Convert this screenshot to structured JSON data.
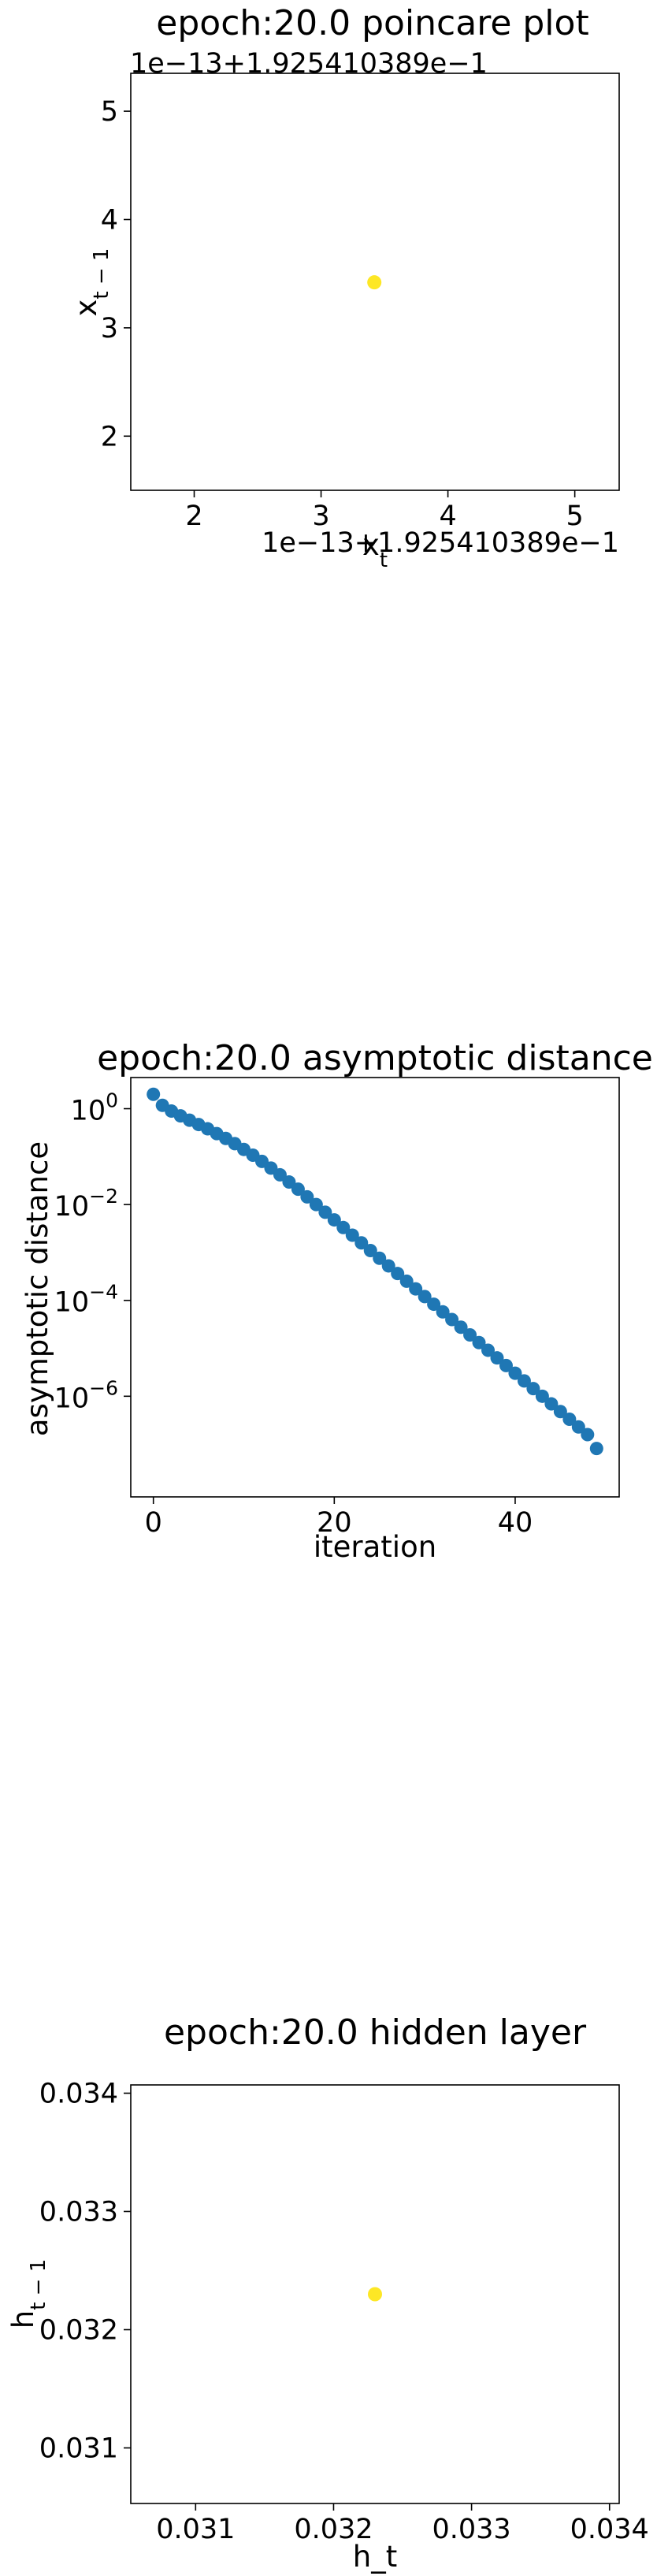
{
  "chart_data": [
    {
      "type": "scatter",
      "title": "epoch:20.0 poincare plot",
      "xlabel": "x_t",
      "ylabel": "x_{t-1}",
      "x_offset_text": "1e−13+1.925410389e−1",
      "y_offset_text": "1e−13+1.925410389e−1",
      "xlim": [
        1.5,
        5.35
      ],
      "ylim": [
        1.5,
        5.35
      ],
      "xticks": [
        2,
        3,
        4,
        5
      ],
      "yticks": [
        2,
        3,
        4,
        5
      ],
      "points": [
        {
          "x": 3.42,
          "y": 3.42
        }
      ],
      "point_color": "#fde725",
      "grid": false
    },
    {
      "type": "scatter",
      "title": "epoch:20.0 asymptotic distance",
      "xlabel": "iteration",
      "ylabel": "asymptotic distance",
      "yscale": "log",
      "xlim": [
        -2.5,
        51.5
      ],
      "ylim_log10": [
        -8.1,
        0.65
      ],
      "xticks": [
        0,
        20,
        40
      ],
      "yticks": [
        {
          "exp": 0,
          "label": "10^0"
        },
        {
          "exp": -2,
          "label": "10^-2"
        },
        {
          "exp": -4,
          "label": "10^-4"
        },
        {
          "exp": -6,
          "label": "10^-6"
        }
      ],
      "x": [
        0,
        1,
        2,
        3,
        4,
        5,
        6,
        7,
        8,
        9,
        10,
        11,
        12,
        13,
        14,
        15,
        16,
        17,
        18,
        19,
        20,
        21,
        22,
        23,
        24,
        25,
        26,
        27,
        28,
        29,
        30,
        31,
        32,
        33,
        34,
        35,
        36,
        37,
        38,
        39,
        40,
        41,
        42,
        43,
        44,
        45,
        46,
        47,
        48,
        49
      ],
      "log10_y": [
        0.3,
        0.07,
        -0.05,
        -0.15,
        -0.24,
        -0.33,
        -0.42,
        -0.52,
        -0.62,
        -0.73,
        -0.85,
        -0.97,
        -1.1,
        -1.24,
        -1.38,
        -1.53,
        -1.68,
        -1.84,
        -2.0,
        -2.16,
        -2.32,
        -2.48,
        -2.64,
        -2.8,
        -2.96,
        -3.12,
        -3.28,
        -3.44,
        -3.6,
        -3.76,
        -3.92,
        -4.08,
        -4.24,
        -4.4,
        -4.56,
        -4.72,
        -4.88,
        -5.04,
        -5.2,
        -5.36,
        -5.52,
        -5.68,
        -5.84,
        -6.0,
        -6.16,
        -6.32,
        -6.48,
        -6.64,
        -6.8,
        -7.09
      ],
      "point_color": "#1f77b4",
      "grid": false
    },
    {
      "type": "scatter",
      "title": "epoch:20.0 hidden layer",
      "xlabel": "h_t",
      "ylabel": "h_{t-1}",
      "xlim": [
        0.03053,
        0.03407
      ],
      "ylim": [
        0.03053,
        0.03407
      ],
      "xticks": [
        "0.031",
        "0.032",
        "0.033",
        "0.034"
      ],
      "yticks": [
        "0.031",
        "0.032",
        "0.033",
        "0.034"
      ],
      "points": [
        {
          "x": 0.0323,
          "y": 0.0323
        }
      ],
      "point_color": "#fde725",
      "grid": false
    }
  ]
}
